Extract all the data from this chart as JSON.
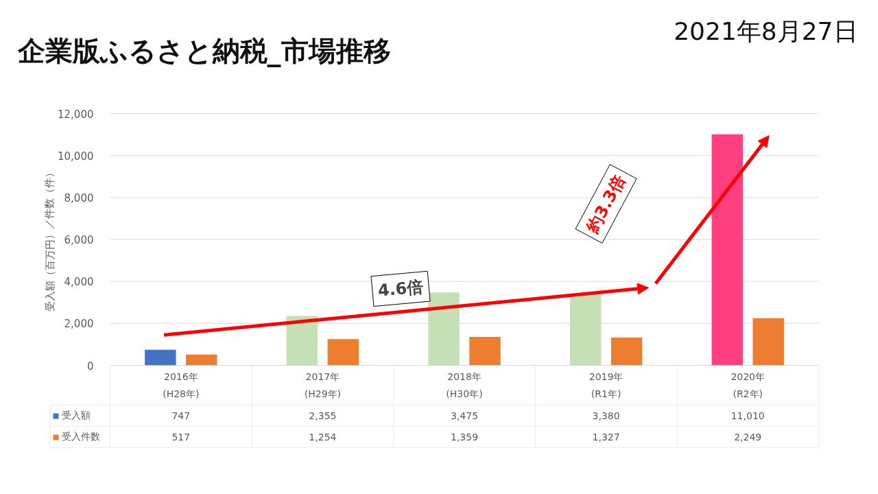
{
  "chart_data": {
    "type": "bar",
    "title": "企業版ふるさと納税_市場推移",
    "subtitle": "2021年8月27日",
    "ylabel": "受入額（百万円）／件数（件）",
    "categories": [
      "2016年\n(H28年)",
      "2017年\n(H29年)",
      "2018年\n(H30年)",
      "2019年\n(R1年)",
      "2020年\n(R2年)"
    ],
    "series": [
      {
        "name": "受入額",
        "color": "#4472c4",
        "colors": [
          "#4472c4",
          "#c5e0b4",
          "#c5e0b4",
          "#c5e0b4",
          "#ff3f80"
        ],
        "values": [
          747,
          2355,
          3475,
          3380,
          11010
        ],
        "value_labels": [
          "747",
          "2,355",
          "3,475",
          "3,380",
          "11,010"
        ]
      },
      {
        "name": "受入件数",
        "color": "#ed7d31",
        "values": [
          517,
          1254,
          1359,
          1327,
          2249
        ],
        "value_labels": [
          "517",
          "1,254",
          "1,359",
          "1,327",
          "2,249"
        ]
      }
    ],
    "ylim": [
      0,
      12000
    ],
    "yticks": [
      {
        "value": 0,
        "label": "0"
      },
      {
        "value": 2000,
        "label": "2,000"
      },
      {
        "value": 4000,
        "label": "4,000"
      },
      {
        "value": 6000,
        "label": "6,000"
      },
      {
        "value": 8000,
        "label": "8,000"
      },
      {
        "value": 10000,
        "label": "10,000"
      },
      {
        "value": 12000,
        "label": "12,000"
      }
    ],
    "grid": "y",
    "legend": "bottom",
    "annotations": [
      "4.6倍",
      "約3.3倍"
    ]
  }
}
